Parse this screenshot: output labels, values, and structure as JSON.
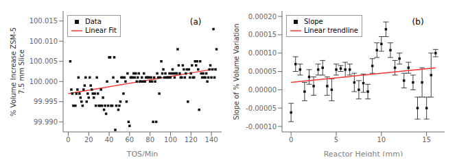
{
  "chart_data": [
    {
      "type": "scatter",
      "title": "(a)",
      "x_label": "TOS/Min",
      "y_label": "% Volume Increase ZSM-5\n7.5 mm Slice",
      "xlim": [
        -5,
        150
      ],
      "ylim": [
        99.9875,
        100.0175
      ],
      "xticks": [
        0,
        20,
        40,
        60,
        80,
        100,
        120,
        140
      ],
      "yticks": [
        {
          "value": 99.99,
          "label": "99.990"
        },
        99.995,
        {
          "value": 100,
          "label": "100.000"
        },
        100.005,
        {
          "value": 100.01,
          "label": "100.010"
        },
        100.015
      ],
      "legend": "upper left",
      "series": [
        {
          "name": "Data",
          "type": "scatter",
          "marker": "square",
          "color": "#111111",
          "x": [
            2,
            3,
            4,
            5,
            7,
            8,
            9,
            10,
            11,
            12,
            13,
            14,
            15,
            16,
            17,
            18,
            19,
            20,
            21,
            22,
            23,
            24,
            25,
            26,
            27,
            28,
            29,
            30,
            31,
            32,
            33,
            34,
            35,
            36,
            37,
            38,
            39,
            40,
            41,
            42,
            43,
            44,
            45,
            46,
            47,
            48,
            49,
            50,
            51,
            52,
            53,
            54,
            55,
            56,
            57,
            58,
            59,
            60,
            61,
            62,
            63,
            64,
            65,
            66,
            67,
            68,
            69,
            70,
            71,
            72,
            73,
            74,
            75,
            76,
            77,
            78,
            79,
            80,
            81,
            82,
            83,
            84,
            85,
            86,
            87,
            88,
            89,
            90,
            91,
            92,
            93,
            94,
            95,
            96,
            97,
            98,
            99,
            100,
            101,
            102,
            103,
            104,
            105,
            106,
            107,
            108,
            109,
            110,
            111,
            112,
            113,
            114,
            115,
            116,
            117,
            118,
            119,
            120,
            121,
            122,
            123,
            124,
            125,
            126,
            127,
            128,
            129,
            130,
            131,
            132,
            133,
            134,
            135,
            136,
            137,
            138,
            139,
            140,
            141,
            142,
            143,
            144,
            145
          ],
          "values": [
            100.005,
            99.998,
            99.997,
            99.994,
            99.994,
            99.997,
            99.998,
            100.001,
            99.997,
            99.996,
            99.995,
            99.994,
            99.998,
            99.999,
            100.001,
            99.995,
            99.997,
            99.996,
            100.001,
            99.999,
            99.998,
            99.997,
            99.996,
            99.997,
            99.994,
            100.001,
            99.997,
            99.994,
            99.994,
            99.998,
            99.994,
            99.996,
            99.993,
            99.994,
            99.992,
            100.0,
            99.994,
            100.006,
            100.006,
            99.994,
            99.994,
            100.001,
            100.006,
            99.988,
            99.994,
            100.0,
            99.993,
            99.994,
            99.995,
            100.001,
            100.001,
            99.997,
            100.001,
            100.0,
            99.995,
            100.002,
            99.99,
            99.989,
            100.001,
            100.001,
            100.001,
            100.002,
            100.001,
            100.002,
            100.0,
            100.001,
            100.002,
            100.0,
            100.0,
            100.001,
            100.0,
            100.002,
            100.0,
            100.001,
            100.001,
            100.001,
            100.001,
            100.0,
            100.001,
            100.0,
            99.99,
            100.001,
            100.0,
            99.99,
            100.002,
            100.001,
            99.997,
            100.001,
            100.005,
            100.002,
            100.003,
            100.001,
            100.002,
            100.001,
            100.001,
            100.001,
            100.002,
            100.001,
            100.002,
            100.003,
            100.002,
            100.001,
            100.002,
            100.002,
            100.008,
            100.004,
            100.002,
            100.001,
            100.001,
            100.004,
            100.003,
            100.001,
            100.002,
            100.003,
            99.995,
            100.003,
            100.001,
            100.002,
            100.004,
            100.001,
            100.001,
            100.005,
            100.004,
            100.005,
            100.003,
            99.993,
            100.005,
            100.002,
            100.001,
            100.002,
            100.001,
            100.001,
            100.002,
            100.0,
            100.001,
            100.003,
            100.004,
            100.001,
            100.003,
            100.013,
            100.001,
            100.003,
            100.008
          ]
        },
        {
          "name": "Linear Fit",
          "type": "line",
          "color": "#FF3333",
          "x": [
            0,
            145
          ],
          "values": [
            99.997,
            100.0032
          ]
        }
      ]
    },
    {
      "type": "scatter",
      "title": "(b)",
      "x_label": "Reactor Height (mm)",
      "y_label": "Slope of % Volume Variation",
      "xlim": [
        -1.0,
        17.0
      ],
      "ylim": [
        -0.000115,
        0.000215
      ],
      "xticks": [
        0,
        5,
        10,
        15
      ],
      "yticks": [
        {
          "value": -0.0001,
          "label": "-0.00010"
        },
        -5e-05,
        {
          "value": 0,
          "label": "0.00000"
        },
        5e-05,
        {
          "value": 0.0001,
          "label": "0.00010"
        },
        0.00015,
        {
          "value": 0.0002,
          "label": "0.00020"
        }
      ],
      "legend": "upper left",
      "series": [
        {
          "name": "Slope",
          "type": "scatter",
          "marker": "square",
          "color": "#111111",
          "x": [
            0.0,
            0.5,
            1.0,
            1.5,
            2.0,
            2.5,
            3.0,
            3.5,
            4.0,
            4.5,
            5.0,
            5.5,
            6.0,
            6.5,
            7.0,
            7.5,
            8.0,
            8.5,
            9.0,
            9.5,
            10.0,
            10.5,
            11.0,
            11.5,
            12.0,
            12.5,
            13.0,
            13.5,
            14.0,
            14.5,
            15.0,
            15.5,
            16.0
          ],
          "values": [
            -6.2e-05,
            7e-05,
            5.5e-05,
            -5e-06,
            3.5e-05,
            1e-05,
            5.5e-05,
            6e-05,
            1e-05,
            0.0,
            5.5e-05,
            5.8e-05,
            5.5e-05,
            5.5e-05,
            2e-05,
            0.0,
            1.8e-05,
            -5e-06,
            6.5e-05,
            0.000108,
            0.000125,
            0.000165,
            0.000108,
            6e-05,
            8.5e-05,
            2.5e-05,
            6e-05,
            2e-05,
            -5e-05,
            2e-05,
            -5e-05,
            4e-05,
            0.0001
          ],
          "yerr": [
            2.5e-05,
            2e-05,
            1.5e-05,
            2.5e-05,
            2e-05,
            2.5e-05,
            1.5e-05,
            2e-05,
            2.5e-05,
            3e-05,
            1.5e-05,
            8e-06,
            2e-05,
            1.5e-05,
            2.5e-05,
            2.5e-05,
            2.5e-05,
            2e-05,
            2e-05,
            2e-05,
            2e-05,
            2e-05,
            2e-05,
            2e-05,
            1.5e-05,
            2e-05,
            1.5e-05,
            2e-05,
            3e-05,
            4e-05,
            3e-05,
            6e-05,
            1e-05
          ]
        },
        {
          "name": "Linear trendline",
          "type": "line",
          "color": "#FF3333",
          "x": [
            0,
            16
          ],
          "values": [
            2e-05,
            6e-05
          ]
        }
      ]
    }
  ]
}
